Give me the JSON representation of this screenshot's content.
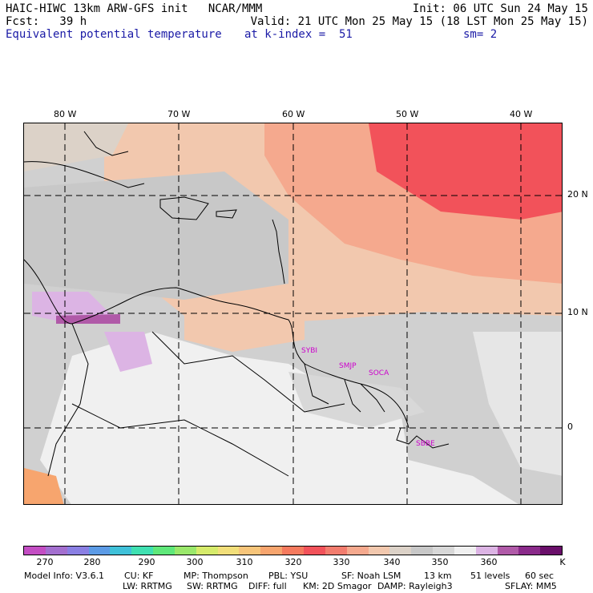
{
  "header": {
    "line1_left": "HAIC-HIWC 13km ARW-GFS init   NCAR/MMM",
    "line1_right": "Init: 06 UTC Sun 24 May 15",
    "line2_left": "Fcst:   39 h",
    "line2_right": "Valid: 21 UTC Mon 25 May 15 (18 LST Mon 25 May 15)",
    "field_name": "Equivalent potential temperature",
    "level": "at k-index =  51",
    "smoothing": "sm= 2"
  },
  "map": {
    "lon_labels": [
      "80 W",
      "70 W",
      "60 W",
      "50 W",
      "40 W"
    ],
    "lat_labels": [
      "20 N",
      "10 N",
      "0"
    ],
    "stations": [
      "SYBI",
      "SMJP",
      "SOCA",
      "SBBE"
    ]
  },
  "colorbar": {
    "colors": [
      "#c34dc3",
      "#a36fcf",
      "#8a7fe3",
      "#5c9be6",
      "#3fc1d9",
      "#3fe0b1",
      "#5fe87a",
      "#9ae86b",
      "#d6eb6b",
      "#f2df7a",
      "#f7c57a",
      "#f7a56e",
      "#f57a5e",
      "#f2525a",
      "#f27c6e",
      "#f5a98e",
      "#f2c8ae",
      "#dcd2c8",
      "#c8c8c8",
      "#d8d8d8",
      "#f0f0f0",
      "#dcb4e4",
      "#b05aa8",
      "#8a2a8a",
      "#6a0f6a"
    ],
    "labels": [
      "270",
      "280",
      "290",
      "300",
      "310",
      "320",
      "330",
      "340",
      "350",
      "360"
    ],
    "unit": "K"
  },
  "footer": {
    "line1": [
      "Model Info: V3.6.1",
      "CU: KF",
      "MP: Thompson",
      "PBL: YSU",
      "SF: Noah LSM",
      "13 km",
      "51 levels",
      "60 sec"
    ],
    "line2": [
      "LW: RRTMG",
      "SW: RRTMG",
      "DIFF: full",
      "KM: 2D Smagor",
      "DAMP: Rayleigh3",
      "SFLAY: MM5"
    ]
  }
}
